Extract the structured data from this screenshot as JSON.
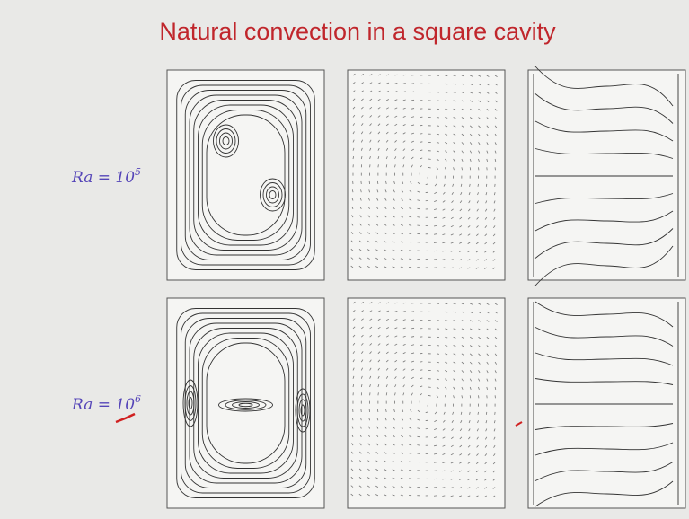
{
  "slide": {
    "title": "Natural convection in a square cavity",
    "rows": [
      {
        "label": "Ra = 10",
        "exponent": "5"
      },
      {
        "label": "Ra = 10",
        "exponent": "6"
      }
    ]
  }
}
